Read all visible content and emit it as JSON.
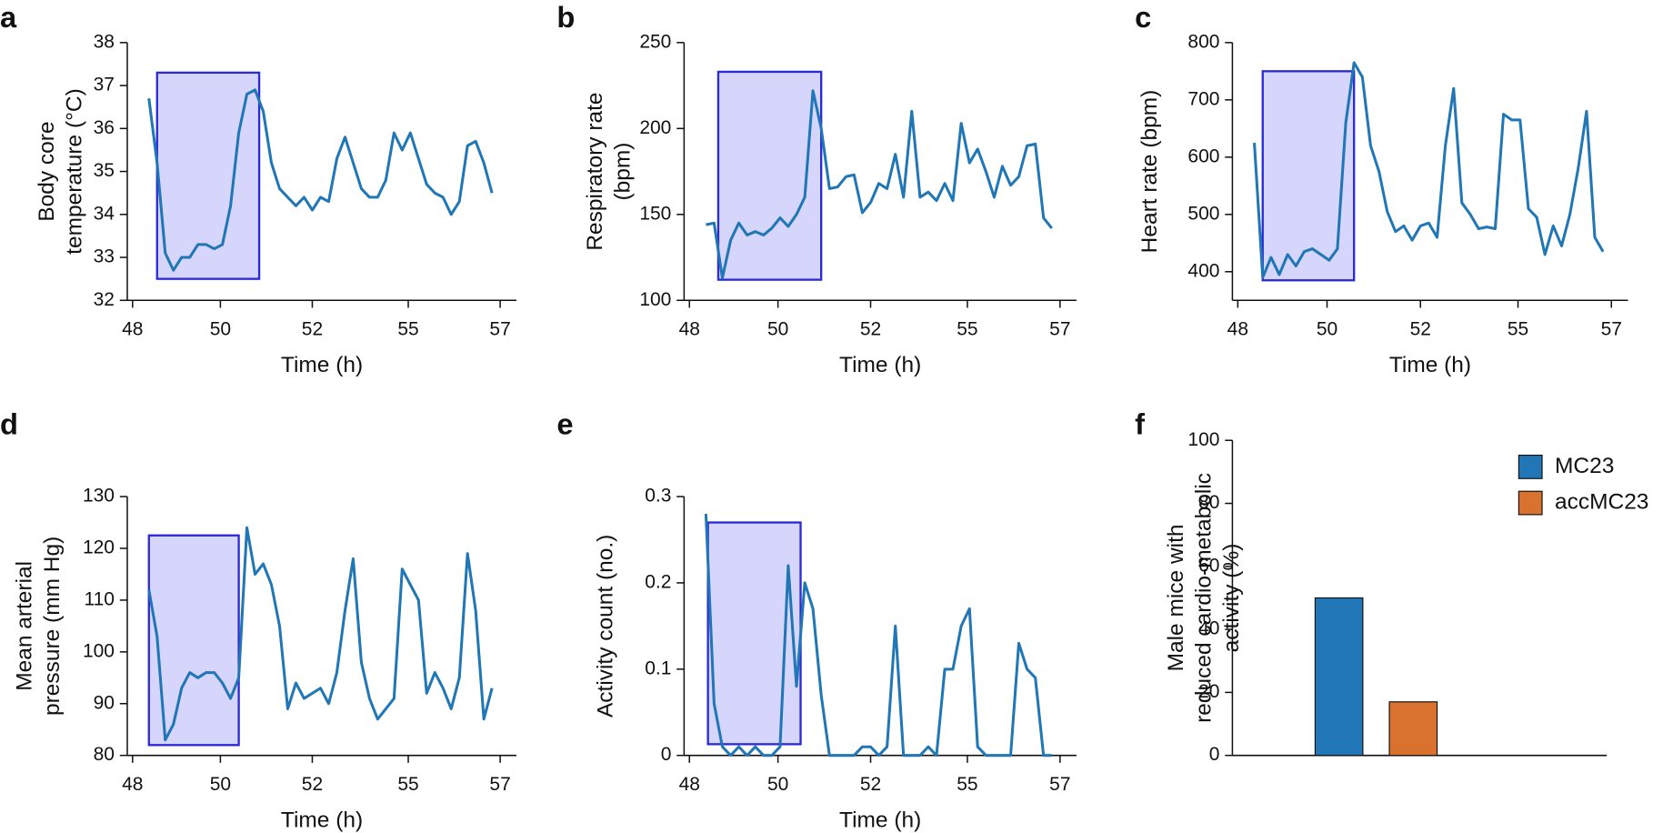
{
  "chart_data": [
    {
      "type": "line",
      "label": "a",
      "ylabel": [
        "Body core",
        "temperature (°C)"
      ],
      "xlabel": "Time (h)",
      "x": [
        48.4,
        48.6,
        48.8,
        49.0,
        49.2,
        49.4,
        49.6,
        49.8,
        50.0,
        50.2,
        50.4,
        50.6,
        50.8,
        51.0,
        51.2,
        51.4,
        51.6,
        51.8,
        52.0,
        52.2,
        52.4,
        52.6,
        52.8,
        53.0,
        53.2,
        53.4,
        53.6,
        53.8,
        54.0,
        54.2,
        54.4,
        54.6,
        54.8,
        55.0,
        55.2,
        55.4,
        55.6,
        55.8,
        56.0,
        56.2,
        56.4,
        56.6,
        56.8
      ],
      "series": [
        {
          "color": "#2176b5",
          "values": [
            36.7,
            35.2,
            33.1,
            32.7,
            33.0,
            33.0,
            33.3,
            33.3,
            33.2,
            33.3,
            34.2,
            35.9,
            36.8,
            36.9,
            36.4,
            35.2,
            34.6,
            34.4,
            34.2,
            34.4,
            34.1,
            34.4,
            34.3,
            35.3,
            35.8,
            35.2,
            34.6,
            34.4,
            34.4,
            34.8,
            35.9,
            35.5,
            35.9,
            35.3,
            34.7,
            34.5,
            34.4,
            34.0,
            34.3,
            35.6,
            35.7,
            35.2,
            34.5
          ]
        }
      ],
      "highlight": {
        "color": "#2b2bd6",
        "x": [
          48.6,
          51.1
        ],
        "y": [
          32.5,
          37.3
        ]
      },
      "xlim": [
        47.87,
        57.4
      ],
      "xticks": [
        48,
        {
          "value": 50.15,
          "label": "50"
        },
        {
          "value": 52.4,
          "label": "52"
        },
        {
          "value": 54.75,
          "label": "55"
        },
        57
      ],
      "ylim": [
        32,
        38
      ],
      "yticks": [
        32,
        33,
        34,
        35,
        36,
        37,
        38
      ]
    },
    {
      "type": "line",
      "label": "b",
      "ylabel": [
        "Respiratory rate",
        "(bpm)"
      ],
      "xlabel": "Time (h)",
      "x": [
        48.4,
        48.6,
        48.8,
        49.0,
        49.2,
        49.4,
        49.6,
        49.8,
        50.0,
        50.2,
        50.4,
        50.6,
        50.8,
        51.0,
        51.2,
        51.4,
        51.6,
        51.8,
        52.0,
        52.2,
        52.4,
        52.6,
        52.8,
        53.0,
        53.2,
        53.4,
        53.6,
        53.8,
        54.0,
        54.2,
        54.4,
        54.6,
        54.8,
        55.0,
        55.2,
        55.4,
        55.6,
        55.8,
        56.0,
        56.2,
        56.4,
        56.6,
        56.8
      ],
      "series": [
        {
          "color": "#2176b5",
          "values": [
            144,
            145,
            113,
            135,
            145,
            138,
            140,
            138,
            142,
            148,
            143,
            150,
            160,
            222,
            200,
            165,
            166,
            172,
            173,
            151,
            157,
            168,
            165,
            185,
            160,
            210,
            160,
            163,
            158,
            168,
            158,
            203,
            180,
            188,
            175,
            160,
            178,
            167,
            172,
            190,
            191,
            148,
            142
          ]
        }
      ],
      "highlight": {
        "color": "#2b2bd6",
        "x": [
          48.7,
          51.2
        ],
        "y": [
          112,
          233
        ]
      },
      "xlim": [
        47.87,
        57.4
      ],
      "xticks": [
        48,
        {
          "value": 50.15,
          "label": "50"
        },
        {
          "value": 52.4,
          "label": "52"
        },
        {
          "value": 54.75,
          "label": "55"
        },
        57
      ],
      "ylim": [
        100,
        250
      ],
      "yticks": [
        100,
        150,
        200,
        250
      ]
    },
    {
      "type": "line",
      "label": "c",
      "ylabel": [
        "Heart rate (bpm)"
      ],
      "xlabel": "Time (h)",
      "x": [
        48.4,
        48.6,
        48.8,
        49.0,
        49.2,
        49.4,
        49.6,
        49.8,
        50.0,
        50.2,
        50.4,
        50.6,
        50.8,
        51.0,
        51.2,
        51.4,
        51.6,
        51.8,
        52.0,
        52.2,
        52.4,
        52.6,
        52.8,
        53.0,
        53.2,
        53.4,
        53.6,
        53.8,
        54.0,
        54.2,
        54.4,
        54.6,
        54.8,
        55.0,
        55.2,
        55.4,
        55.6,
        55.8,
        56.0,
        56.2,
        56.4,
        56.6,
        56.8
      ],
      "series": [
        {
          "color": "#2176b5",
          "values": [
            625,
            390,
            425,
            395,
            430,
            410,
            435,
            440,
            430,
            420,
            440,
            660,
            765,
            740,
            620,
            575,
            505,
            470,
            480,
            455,
            480,
            485,
            460,
            620,
            720,
            520,
            500,
            475,
            478,
            475,
            675,
            665,
            665,
            510,
            495,
            430,
            480,
            445,
            500,
            580,
            680,
            460,
            435
          ]
        }
      ],
      "highlight": {
        "color": "#2b2bd6",
        "x": [
          48.6,
          50.8
        ],
        "y": [
          385,
          750
        ]
      },
      "xlim": [
        47.87,
        57.4
      ],
      "xticks": [
        48,
        {
          "value": 50.15,
          "label": "50"
        },
        {
          "value": 52.4,
          "label": "52"
        },
        {
          "value": 54.75,
          "label": "55"
        },
        57
      ],
      "ylim": [
        350,
        800
      ],
      "yticks": [
        400,
        500,
        600,
        700,
        800
      ]
    },
    {
      "type": "line",
      "label": "d",
      "ylabel": [
        "Mean arterial",
        "pressure (mm Hg)"
      ],
      "xlabel": "Time (h)",
      "x": [
        48.4,
        48.6,
        48.8,
        49.0,
        49.2,
        49.4,
        49.6,
        49.8,
        50.0,
        50.2,
        50.4,
        50.6,
        50.8,
        51.0,
        51.2,
        51.4,
        51.6,
        51.8,
        52.0,
        52.2,
        52.4,
        52.6,
        52.8,
        53.0,
        53.2,
        53.4,
        53.6,
        53.8,
        54.0,
        54.2,
        54.4,
        54.6,
        54.8,
        55.0,
        55.2,
        55.4,
        55.6,
        55.8,
        56.0,
        56.2,
        56.4,
        56.6,
        56.8
      ],
      "series": [
        {
          "color": "#2176b5",
          "values": [
            112,
            103,
            83,
            86,
            93,
            96,
            95,
            96,
            96,
            94,
            91,
            95,
            124,
            115,
            117,
            113,
            105,
            89,
            94,
            91,
            92,
            93,
            90,
            96,
            108,
            118,
            98,
            91,
            87,
            89,
            91,
            116,
            113,
            110,
            92,
            96,
            93,
            89,
            95,
            119,
            108,
            87,
            93
          ]
        }
      ],
      "highlight": {
        "color": "#2b2bd6",
        "x": [
          48.4,
          50.6
        ],
        "y": [
          82,
          122.5
        ]
      },
      "xlim": [
        47.87,
        57.4
      ],
      "xticks": [
        48,
        {
          "value": 50.15,
          "label": "50"
        },
        {
          "value": 52.4,
          "label": "52"
        },
        {
          "value": 54.75,
          "label": "55"
        },
        57
      ],
      "ylim": [
        80,
        130
      ],
      "yticks": [
        80,
        90,
        100,
        110,
        120,
        130
      ]
    },
    {
      "type": "line",
      "label": "e",
      "ylabel": [
        "Activity count (no.)"
      ],
      "xlabel": "Time (h)",
      "x": [
        48.4,
        48.6,
        48.8,
        49.0,
        49.2,
        49.4,
        49.6,
        49.8,
        50.0,
        50.2,
        50.4,
        50.6,
        50.8,
        51.0,
        51.2,
        51.4,
        51.6,
        51.8,
        52.0,
        52.2,
        52.4,
        52.6,
        52.8,
        53.0,
        53.2,
        53.4,
        53.6,
        53.8,
        54.0,
        54.2,
        54.4,
        54.6,
        54.8,
        55.0,
        55.2,
        55.4,
        55.6,
        55.8,
        56.0,
        56.2,
        56.4,
        56.6,
        56.8
      ],
      "series": [
        {
          "color": "#2176b5",
          "values": [
            0.28,
            0.06,
            0.01,
            0,
            0.01,
            0,
            0.01,
            0,
            0,
            0.01,
            0.22,
            0.08,
            0.2,
            0.17,
            0.07,
            0,
            0,
            0,
            0,
            0.01,
            0.01,
            0,
            0.01,
            0.15,
            0,
            0,
            0,
            0.01,
            0,
            0.1,
            0.1,
            0.15,
            0.17,
            0.01,
            0,
            0,
            0,
            0,
            0.13,
            0.1,
            0.09,
            0,
            0
          ]
        }
      ],
      "highlight": {
        "color": "#2b2bd6",
        "x": [
          48.45,
          50.7
        ],
        "y": [
          0.013,
          0.27
        ]
      },
      "xlim": [
        47.87,
        57.4
      ],
      "xticks": [
        48,
        {
          "value": 50.15,
          "label": "50"
        },
        {
          "value": 52.4,
          "label": "52"
        },
        {
          "value": 54.75,
          "label": "55"
        },
        57
      ],
      "ylim": [
        0,
        0.3
      ],
      "yticks": [
        0,
        0.1,
        0.2,
        0.3
      ]
    },
    {
      "type": "bar",
      "label": "f",
      "ylabel": [
        "Male mice with",
        "reduced cardio-metabolic",
        "activity (%)"
      ],
      "categories": [
        null
      ],
      "series": [
        {
          "name": "MC23",
          "color": "#2176b5",
          "values": [
            50
          ]
        },
        {
          "name": "accMC23",
          "color": "#d9712f",
          "values": [
            17
          ]
        }
      ],
      "ylim": [
        0,
        100
      ],
      "yticks": [
        0,
        20,
        40,
        60,
        80,
        100
      ],
      "legend": "upper right"
    }
  ]
}
